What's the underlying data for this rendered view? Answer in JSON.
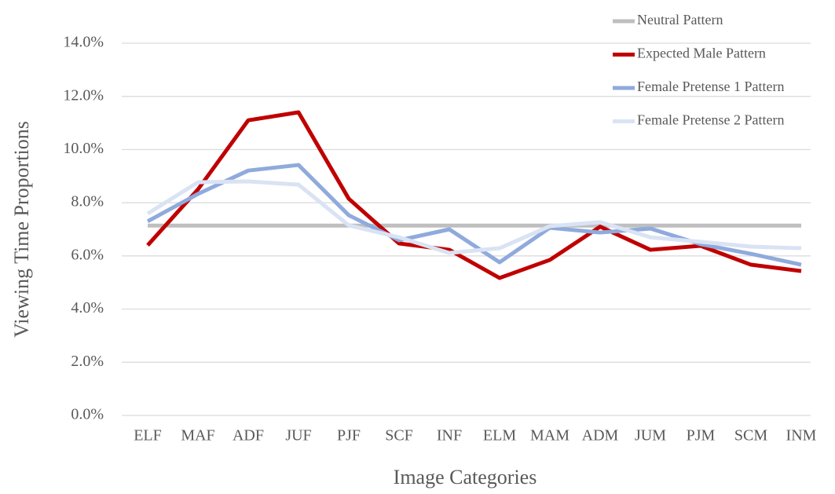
{
  "chart_data": {
    "type": "line",
    "x_label": "Image Categories",
    "y_label": "Viewing Time Proportions",
    "categories": [
      "ELF",
      "MAF",
      "ADF",
      "JUF",
      "PJF",
      "SCF",
      "INF",
      "ELM",
      "MAM",
      "ADM",
      "JUM",
      "PJM",
      "SCM",
      "INM"
    ],
    "series": [
      {
        "name": "Neutral Pattern",
        "color": "#bfbfbf",
        "values": [
          7.14,
          7.14,
          7.14,
          7.14,
          7.14,
          7.14,
          7.14,
          7.14,
          7.14,
          7.14,
          7.14,
          7.14,
          7.14,
          7.14
        ]
      },
      {
        "name": "Expected Male Pattern",
        "color": "#c00000",
        "values": [
          6.4,
          8.5,
          11.1,
          11.4,
          8.15,
          6.47,
          6.23,
          5.17,
          5.85,
          7.1,
          6.23,
          6.38,
          5.67,
          5.43
        ]
      },
      {
        "name": "Female Pretense 1 Pattern",
        "color": "#8faadc",
        "values": [
          7.3,
          8.33,
          9.21,
          9.42,
          7.53,
          6.59,
          7.0,
          5.76,
          7.06,
          6.88,
          7.03,
          6.44,
          6.08,
          5.67
        ]
      },
      {
        "name": "Female Pretense 2 Pattern",
        "color": "#dae3f3",
        "values": [
          7.59,
          8.77,
          8.8,
          8.68,
          7.15,
          6.7,
          6.11,
          6.29,
          7.12,
          7.27,
          6.7,
          6.53,
          6.35,
          6.29
        ]
      }
    ],
    "ylim": [
      0,
      14
    ],
    "yticks": [
      {
        "value": 0,
        "label": "0.0%"
      },
      {
        "value": 2,
        "label": "2.0%"
      },
      {
        "value": 4,
        "label": "4.0%"
      },
      {
        "value": 6,
        "label": "6.0%"
      },
      {
        "value": 8,
        "label": "8.0%"
      },
      {
        "value": 10,
        "label": "10.0%"
      },
      {
        "value": 12,
        "label": "12.0%"
      },
      {
        "value": 14,
        "label": "14.0%"
      }
    ],
    "grid": true,
    "legend": "top-right"
  }
}
